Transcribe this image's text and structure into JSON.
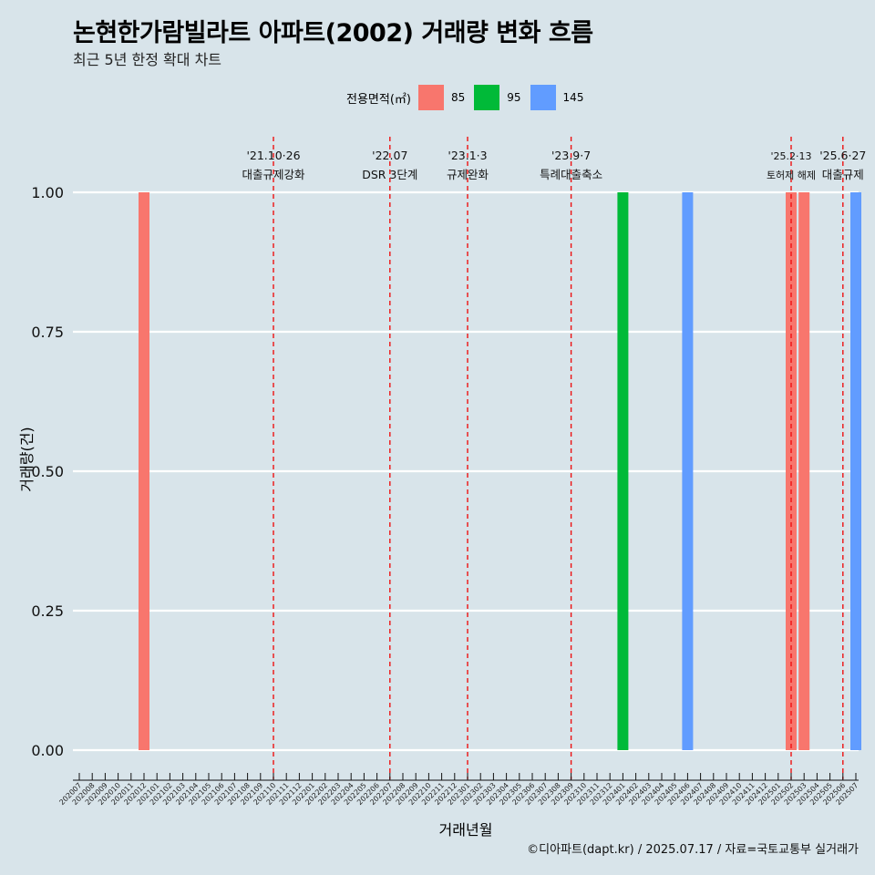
{
  "header": {
    "title": "논현한가람빌라트 아파트(2002) 거래량 변화 흐름",
    "subtitle": "최근 5년 한정 확대 차트"
  },
  "legend": {
    "title": "전용면적(㎡)",
    "items": [
      {
        "label": "85",
        "color": "#f8766d"
      },
      {
        "label": "95",
        "color": "#00ba38"
      },
      {
        "label": "145",
        "color": "#619cff"
      }
    ]
  },
  "caption": "©디아파트(dapt.kr) / 2025.07.17 / 자료=국토교통부 실거래가",
  "chart_data": {
    "type": "bar",
    "xlabel": "거래년월",
    "ylabel": "거래량(건)",
    "ylim": [
      0,
      1
    ],
    "yticks": [
      "0.00",
      "0.25",
      "0.50",
      "0.75",
      "1.00"
    ],
    "categories": [
      "202007",
      "202008",
      "202009",
      "202010",
      "202011",
      "202012",
      "202101",
      "202102",
      "202103",
      "202104",
      "202105",
      "202106",
      "202107",
      "202108",
      "202109",
      "202110",
      "202111",
      "202112",
      "202201",
      "202202",
      "202203",
      "202204",
      "202205",
      "202206",
      "202207",
      "202208",
      "202209",
      "202210",
      "202211",
      "202212",
      "202301",
      "202302",
      "202303",
      "202304",
      "202305",
      "202306",
      "202307",
      "202308",
      "202309",
      "202310",
      "202311",
      "202312",
      "202401",
      "202402",
      "202403",
      "202404",
      "202405",
      "202406",
      "202407",
      "202408",
      "202409",
      "202410",
      "202411",
      "202412",
      "202501",
      "202502",
      "202503",
      "202504",
      "202505",
      "202506",
      "202507"
    ],
    "series": [
      {
        "name": "85",
        "color": "#f8766d",
        "points": [
          {
            "x": "202012",
            "y": 1
          },
          {
            "x": "202502",
            "y": 1
          },
          {
            "x": "202503",
            "y": 1
          }
        ]
      },
      {
        "name": "95",
        "color": "#00ba38",
        "points": [
          {
            "x": "202401",
            "y": 1
          }
        ]
      },
      {
        "name": "145",
        "color": "#619cff",
        "points": [
          {
            "x": "202406",
            "y": 1
          },
          {
            "x": "202507",
            "y": 1
          }
        ]
      }
    ],
    "annotations": [
      {
        "x": "202110",
        "date": "'21.10·26",
        "label": "대출규제강화"
      },
      {
        "x": "202207",
        "date": "'22.07",
        "label": "DSR 3단계"
      },
      {
        "x": "202301",
        "date": "'23.1·3",
        "label": "규제완화"
      },
      {
        "x": "202309",
        "date": "'23.9·7",
        "label": "특례대출축소"
      },
      {
        "x": "202502",
        "date": "'25.2·13",
        "label": "토허제 해제"
      },
      {
        "x": "202506",
        "date": "'25.6·27",
        "label": "대출규제"
      }
    ]
  }
}
